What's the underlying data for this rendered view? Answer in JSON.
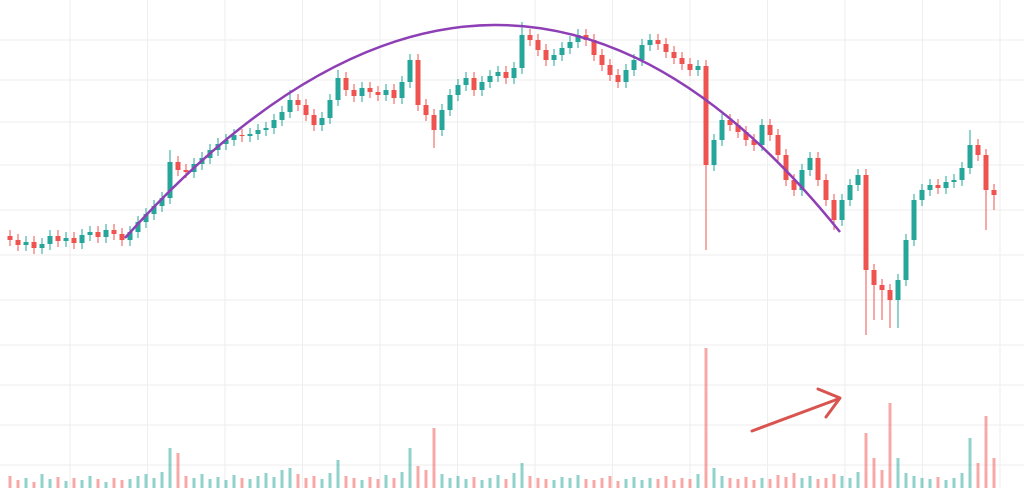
{
  "chart_data": {
    "type": "candlestick",
    "up_color": "#26a69a",
    "down_color": "#ef5350",
    "ylim": [
      0,
      340
    ],
    "volume_ylim": [
      0,
      150
    ],
    "grid": true,
    "open": [
      104,
      100,
      95,
      98,
      92,
      96,
      104,
      99,
      102,
      97,
      105,
      108,
      103,
      110,
      106,
      100,
      108,
      118,
      126,
      134,
      142,
      178,
      170,
      168,
      176,
      182,
      190,
      196,
      200,
      205,
      204,
      206,
      210,
      212,
      220,
      228,
      240,
      235,
      225,
      215,
      222,
      240,
      262,
      250,
      244,
      252,
      248,
      245,
      250,
      242,
      258,
      280,
      235,
      225,
      210,
      230,
      245,
      255,
      262,
      250,
      258,
      264,
      268,
      262,
      272,
      305,
      300,
      290,
      280,
      285,
      292,
      298,
      305,
      300,
      285,
      275,
      265,
      258,
      270,
      280,
      295,
      300,
      296,
      288,
      282,
      276,
      270,
      274,
      175,
      200,
      220,
      215,
      208,
      200,
      195,
      215,
      205,
      185,
      160,
      150,
      170,
      182,
      160,
      140,
      120,
      140,
      155,
      165,
      70,
      55,
      50,
      40,
      60,
      100,
      140,
      150,
      155,
      152,
      158,
      160,
      172,
      195,
      185,
      150
    ],
    "high": [
      110,
      106,
      104,
      104,
      102,
      110,
      110,
      108,
      108,
      111,
      114,
      114,
      116,
      116,
      112,
      114,
      124,
      132,
      140,
      148,
      190,
      184,
      176,
      182,
      188,
      196,
      202,
      206,
      211,
      211,
      212,
      216,
      218,
      226,
      234,
      250,
      246,
      241,
      231,
      228,
      246,
      270,
      268,
      256,
      258,
      258,
      254,
      256,
      256,
      264,
      286,
      286,
      241,
      231,
      236,
      251,
      261,
      268,
      268,
      264,
      270,
      274,
      274,
      278,
      318,
      311,
      306,
      296,
      291,
      298,
      304,
      311,
      311,
      306,
      291,
      281,
      271,
      276,
      286,
      301,
      306,
      306,
      302,
      294,
      288,
      282,
      280,
      280,
      206,
      226,
      226,
      221,
      214,
      206,
      221,
      221,
      211,
      191,
      166,
      176,
      188,
      188,
      166,
      146,
      146,
      161,
      171,
      171,
      76,
      61,
      56,
      66,
      106,
      146,
      156,
      161,
      161,
      164,
      166,
      178,
      210,
      201,
      191,
      156
    ],
    "low": [
      94,
      89,
      89,
      86,
      86,
      90,
      93,
      93,
      91,
      91,
      99,
      97,
      97,
      100,
      94,
      94,
      102,
      112,
      120,
      128,
      136,
      164,
      162,
      162,
      170,
      176,
      184,
      190,
      194,
      198,
      198,
      200,
      204,
      206,
      214,
      222,
      229,
      219,
      209,
      209,
      216,
      234,
      244,
      238,
      238,
      242,
      239,
      239,
      236,
      236,
      252,
      229,
      219,
      192,
      204,
      224,
      239,
      249,
      244,
      244,
      252,
      258,
      256,
      256,
      266,
      294,
      284,
      274,
      274,
      279,
      286,
      292,
      294,
      279,
      269,
      259,
      252,
      252,
      264,
      274,
      289,
      290,
      282,
      276,
      270,
      264,
      264,
      90,
      169,
      194,
      209,
      202,
      194,
      189,
      189,
      199,
      179,
      154,
      144,
      144,
      164,
      154,
      134,
      110,
      114,
      134,
      149,
      5,
      20,
      20,
      12,
      12,
      54,
      94,
      134,
      144,
      146,
      146,
      152,
      154,
      166,
      179,
      110,
      130
    ],
    "close": [
      100,
      95,
      98,
      92,
      96,
      104,
      99,
      102,
      97,
      105,
      108,
      103,
      110,
      106,
      100,
      108,
      118,
      126,
      134,
      142,
      178,
      170,
      168,
      176,
      182,
      190,
      196,
      200,
      205,
      204,
      206,
      210,
      212,
      220,
      228,
      240,
      235,
      225,
      215,
      222,
      240,
      262,
      250,
      244,
      252,
      248,
      245,
      250,
      242,
      258,
      280,
      235,
      225,
      210,
      230,
      245,
      255,
      262,
      250,
      258,
      264,
      268,
      262,
      272,
      305,
      300,
      290,
      280,
      285,
      292,
      298,
      305,
      300,
      285,
      275,
      265,
      258,
      270,
      280,
      295,
      300,
      296,
      288,
      282,
      276,
      270,
      274,
      175,
      200,
      220,
      215,
      208,
      200,
      195,
      215,
      205,
      185,
      160,
      150,
      170,
      182,
      160,
      140,
      120,
      140,
      155,
      165,
      70,
      55,
      50,
      40,
      60,
      100,
      140,
      150,
      155,
      152,
      158,
      160,
      172,
      195,
      185,
      150,
      145
    ],
    "volume": [
      12,
      8,
      10,
      6,
      14,
      9,
      11,
      7,
      10,
      8,
      12,
      9,
      6,
      10,
      8,
      9,
      12,
      14,
      10,
      16,
      40,
      35,
      12,
      10,
      14,
      9,
      11,
      8,
      13,
      10,
      9,
      12,
      15,
      11,
      18,
      20,
      14,
      10,
      12,
      9,
      15,
      28,
      12,
      10,
      8,
      11,
      9,
      13,
      10,
      16,
      40,
      22,
      18,
      60,
      14,
      10,
      12,
      9,
      11,
      8,
      10,
      13,
      9,
      15,
      25,
      12,
      10,
      9,
      8,
      11,
      10,
      13,
      9,
      8,
      10,
      12,
      7,
      9,
      11,
      8,
      10,
      9,
      12,
      8,
      10,
      9,
      14,
      140,
      20,
      12,
      10,
      9,
      11,
      8,
      10,
      9,
      13,
      11,
      15,
      10,
      12,
      9,
      10,
      14,
      12,
      10,
      16,
      55,
      30,
      18,
      85,
      30,
      15,
      12,
      10,
      9,
      11,
      8,
      10,
      15,
      50,
      25,
      72,
      30
    ]
  }
}
